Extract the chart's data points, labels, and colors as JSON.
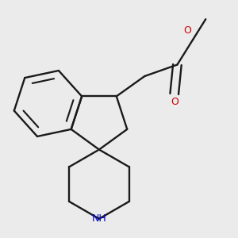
{
  "bg_color": "#ebebeb",
  "bond_color": "#1a1a1a",
  "bond_lw": 1.7,
  "N_color": "#0000cc",
  "O_color": "#cc0000",
  "NH_fontsize": 9,
  "O_fontsize": 9,
  "Me_fontsize": 8.5,
  "xlim": [
    -1.55,
    1.55
  ],
  "ylim": [
    -1.55,
    1.55
  ]
}
